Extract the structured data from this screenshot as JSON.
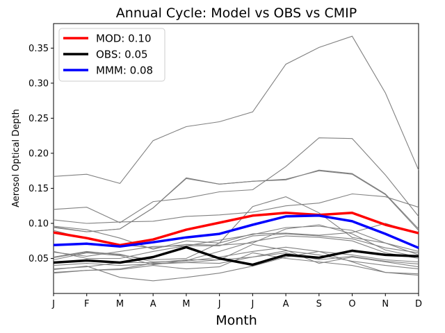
{
  "chart_data": {
    "type": "line",
    "title": "Annual Cycle: Model vs OBS vs CMIP",
    "xlabel": "Month",
    "ylabel": "Aerosol Optical Depth",
    "categories": [
      "J",
      "F",
      "M",
      "A",
      "M",
      "J",
      "J",
      "A",
      "S",
      "O",
      "N",
      "D"
    ],
    "ylim": [
      0.0,
      0.385
    ],
    "yticks": [
      0.05,
      0.1,
      0.15,
      0.2,
      0.25,
      0.3,
      0.35
    ],
    "ytick_labels": [
      "0.05",
      "0.10",
      "0.15",
      "0.20",
      "0.25",
      "0.30",
      "0.35"
    ],
    "grid": false,
    "legend_position": "top-left",
    "cmip_color": "#808080",
    "cmip_members": [
      [
        0.167,
        0.17,
        0.157,
        0.218,
        0.238,
        0.245,
        0.259,
        0.327,
        0.351,
        0.367,
        0.286,
        0.176
      ],
      [
        0.094,
        0.088,
        0.092,
        0.122,
        0.165,
        0.156,
        0.16,
        0.163,
        0.175,
        0.17,
        0.141,
        0.09
      ],
      [
        0.095,
        0.088,
        0.092,
        0.122,
        0.164,
        0.156,
        0.16,
        0.162,
        0.176,
        0.171,
        0.142,
        0.092
      ],
      [
        0.12,
        0.123,
        0.101,
        0.131,
        0.136,
        0.145,
        0.148,
        0.181,
        0.222,
        0.221,
        0.169,
        0.11
      ],
      [
        0.105,
        0.1,
        0.102,
        0.103,
        0.11,
        0.112,
        0.116,
        0.125,
        0.129,
        0.142,
        0.138,
        0.123
      ],
      [
        0.096,
        0.091,
        0.079,
        0.063,
        0.075,
        0.072,
        0.124,
        0.138,
        0.115,
        0.08,
        0.072,
        0.055
      ],
      [
        0.09,
        0.078,
        0.07,
        0.065,
        0.07,
        0.069,
        0.072,
        0.092,
        0.098,
        0.085,
        0.062,
        0.052
      ],
      [
        0.059,
        0.053,
        0.06,
        0.067,
        0.068,
        0.076,
        0.084,
        0.094,
        0.096,
        0.09,
        0.072,
        0.06
      ],
      [
        0.052,
        0.06,
        0.055,
        0.048,
        0.05,
        0.072,
        0.085,
        0.086,
        0.083,
        0.087,
        0.1,
        0.085
      ],
      [
        0.06,
        0.05,
        0.05,
        0.06,
        0.068,
        0.068,
        0.082,
        0.085,
        0.082,
        0.078,
        0.065,
        0.058
      ],
      [
        0.048,
        0.058,
        0.054,
        0.041,
        0.047,
        0.06,
        0.074,
        0.082,
        0.08,
        0.075,
        0.058,
        0.05
      ],
      [
        0.051,
        0.059,
        0.056,
        0.045,
        0.046,
        0.052,
        0.06,
        0.066,
        0.06,
        0.055,
        0.048,
        0.045
      ],
      [
        0.04,
        0.043,
        0.04,
        0.042,
        0.044,
        0.048,
        0.052,
        0.058,
        0.048,
        0.053,
        0.046,
        0.042
      ],
      [
        0.035,
        0.038,
        0.044,
        0.044,
        0.048,
        0.048,
        0.07,
        0.062,
        0.043,
        0.052,
        0.045,
        0.038
      ],
      [
        0.03,
        0.033,
        0.035,
        0.043,
        0.044,
        0.043,
        0.052,
        0.061,
        0.055,
        0.046,
        0.04,
        0.035
      ],
      [
        0.034,
        0.039,
        0.023,
        0.018,
        0.023,
        0.029,
        0.039,
        0.052,
        0.06,
        0.045,
        0.03,
        0.026
      ],
      [
        0.029,
        0.033,
        0.034,
        0.04,
        0.035,
        0.038,
        0.058,
        0.05,
        0.045,
        0.04,
        0.03,
        0.028
      ]
    ],
    "series": [
      {
        "name": "MOD",
        "legend": "MOD: 0.10",
        "color": "#ff0000",
        "values": [
          0.087,
          0.079,
          0.069,
          0.077,
          0.091,
          0.101,
          0.111,
          0.115,
          0.112,
          0.115,
          0.098,
          0.086
        ]
      },
      {
        "name": "OBS",
        "legend": "OBS: 0.05",
        "color": "#000000",
        "values": [
          0.044,
          0.047,
          0.044,
          0.052,
          0.066,
          0.05,
          0.041,
          0.055,
          0.051,
          0.061,
          0.055,
          0.053
        ]
      },
      {
        "name": "MMM",
        "legend": "MMM: 0.08",
        "color": "#0000ff",
        "values": [
          0.069,
          0.071,
          0.067,
          0.073,
          0.08,
          0.085,
          0.098,
          0.11,
          0.111,
          0.103,
          0.085,
          0.065
        ]
      }
    ]
  }
}
